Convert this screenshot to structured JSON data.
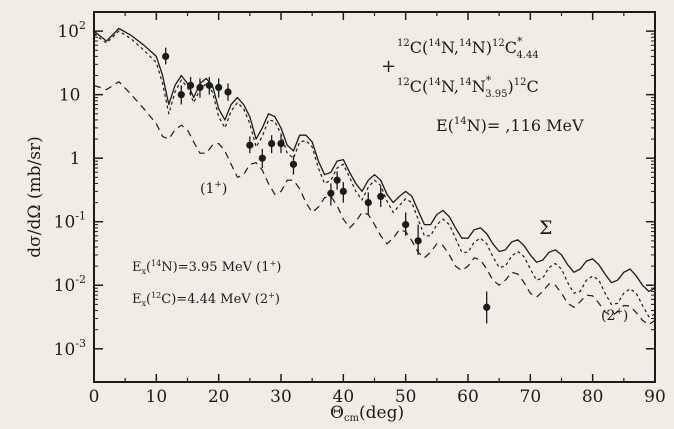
{
  "chart_data": {
    "type": "line",
    "title": "",
    "xlabel": "Θcm(deg)",
    "xlabel_main": "Θ",
    "xlabel_sub": "cm",
    "xlabel_unit": "(deg)",
    "ylabel": "dσ/dΩ (mb/sr)",
    "xlim": [
      0,
      90
    ],
    "ylim": [
      0.0003,
      200
    ],
    "yscale": "log",
    "xticks": [
      0,
      10,
      20,
      30,
      40,
      50,
      60,
      70,
      80,
      90
    ],
    "xtick_labels": [
      "0",
      "10",
      "20",
      "30",
      "40",
      "50",
      "60",
      "70",
      "80",
      "90"
    ],
    "ytick_exponents": [
      2,
      1,
      0,
      -1,
      -2,
      -3
    ],
    "ytick_labels": [
      {
        "base": "10",
        "sup": "2"
      },
      {
        "base": "10",
        "sup": ""
      },
      {
        "base": "1",
        "sup": ""
      },
      {
        "base": "10",
        "sup": "-1"
      },
      {
        "base": "10",
        "sup": "-2"
      },
      {
        "base": "10",
        "sup": "-3"
      }
    ],
    "grid": false,
    "series": [
      {
        "name": "Σ",
        "style": "solid",
        "x": [
          0,
          2,
          4,
          6,
          8,
          10,
          11,
          12,
          13,
          14,
          15,
          16,
          17,
          18,
          19,
          20,
          21,
          22,
          23,
          24,
          25,
          26,
          27,
          28,
          29,
          30,
          31,
          32,
          33,
          34,
          35,
          36,
          37,
          38,
          39,
          40,
          41,
          42,
          43,
          44,
          45,
          46,
          47,
          48,
          49,
          50,
          51,
          52,
          53,
          54,
          55,
          56,
          57,
          58,
          59,
          60,
          61,
          62,
          63,
          64,
          65,
          66,
          67,
          68,
          69,
          70,
          71,
          72,
          73,
          74,
          75,
          76,
          77,
          78,
          79,
          80,
          81,
          82,
          83,
          84,
          85,
          86,
          87,
          88,
          89,
          90
        ],
        "y": [
          100,
          70,
          110,
          85,
          60,
          40,
          20,
          7,
          14,
          20,
          15,
          9,
          15,
          18,
          14,
          6,
          4,
          7,
          9,
          7,
          4.5,
          2,
          3,
          5,
          4.5,
          3,
          1.6,
          1.3,
          2.3,
          2.3,
          1.8,
          0.9,
          0.55,
          0.6,
          0.9,
          0.95,
          0.6,
          0.4,
          0.3,
          0.45,
          0.55,
          0.45,
          0.27,
          0.2,
          0.25,
          0.3,
          0.25,
          0.15,
          0.09,
          0.09,
          0.13,
          0.15,
          0.12,
          0.08,
          0.055,
          0.055,
          0.075,
          0.08,
          0.065,
          0.045,
          0.034,
          0.036,
          0.048,
          0.052,
          0.042,
          0.03,
          0.023,
          0.025,
          0.033,
          0.036,
          0.03,
          0.021,
          0.016,
          0.018,
          0.024,
          0.026,
          0.021,
          0.015,
          0.011,
          0.012,
          0.016,
          0.018,
          0.014,
          0.01,
          0.008,
          0.009
        ]
      },
      {
        "name": "(1⁺)",
        "style": "dashed",
        "x": [
          0,
          2,
          4,
          6,
          8,
          10,
          11,
          12,
          13,
          14,
          15,
          16,
          17,
          18,
          19,
          20,
          21,
          22,
          23,
          24,
          25,
          26,
          27,
          28,
          29,
          30,
          31,
          32,
          33,
          34,
          35,
          36,
          37,
          38,
          39,
          40,
          41,
          42,
          43,
          44,
          45,
          46,
          47,
          48,
          49,
          50,
          51,
          52,
          53,
          54,
          55,
          56,
          57,
          58,
          59,
          60,
          61,
          62,
          63,
          64,
          65,
          66,
          67,
          68,
          69,
          70,
          71,
          72,
          73,
          74,
          75,
          76,
          77,
          78,
          79,
          80,
          81,
          82,
          83,
          84,
          85,
          86,
          87,
          88,
          89,
          90
        ],
        "y": [
          14,
          12,
          16,
          10,
          6,
          3.5,
          2.2,
          2,
          2.8,
          3.3,
          2.8,
          1.8,
          1.2,
          1.2,
          1.6,
          1.7,
          1.3,
          0.8,
          0.5,
          0.55,
          0.8,
          0.85,
          0.65,
          0.4,
          0.27,
          0.3,
          0.45,
          0.45,
          0.33,
          0.2,
          0.14,
          0.17,
          0.24,
          0.25,
          0.18,
          0.11,
          0.08,
          0.1,
          0.14,
          0.13,
          0.09,
          0.06,
          0.045,
          0.055,
          0.075,
          0.07,
          0.05,
          0.033,
          0.027,
          0.033,
          0.045,
          0.042,
          0.03,
          0.02,
          0.017,
          0.02,
          0.027,
          0.025,
          0.018,
          0.012,
          0.01,
          0.012,
          0.016,
          0.015,
          0.011,
          0.0075,
          0.0065,
          0.008,
          0.0105,
          0.01,
          0.0075,
          0.0052,
          0.0045,
          0.0055,
          0.007,
          0.0068,
          0.0052,
          0.0038,
          0.0033,
          0.0038,
          0.0048,
          0.0047,
          0.0037,
          0.0028,
          0.0024,
          0.0028
        ]
      },
      {
        "name": "(2⁺)",
        "style": "dotted",
        "x": [
          0,
          2,
          4,
          6,
          8,
          10,
          11,
          12,
          13,
          14,
          15,
          16,
          17,
          18,
          19,
          20,
          21,
          22,
          23,
          24,
          25,
          26,
          27,
          28,
          29,
          30,
          31,
          32,
          33,
          34,
          35,
          36,
          37,
          38,
          39,
          40,
          41,
          42,
          43,
          44,
          45,
          46,
          47,
          48,
          49,
          50,
          51,
          52,
          53,
          54,
          55,
          56,
          57,
          58,
          59,
          60,
          61,
          62,
          63,
          64,
          65,
          66,
          67,
          68,
          69,
          70,
          71,
          72,
          73,
          74,
          75,
          76,
          77,
          78,
          79,
          80,
          81,
          82,
          83,
          84,
          85,
          86,
          87,
          88,
          89,
          90
        ],
        "y": [
          90,
          65,
          100,
          75,
          50,
          32,
          15,
          5,
          11,
          17,
          13,
          7.5,
          12,
          15,
          11,
          4.5,
          3,
          5.5,
          7.5,
          6,
          3.5,
          1.5,
          2.2,
          4,
          3.8,
          2.4,
          1.2,
          1,
          1.8,
          1.9,
          1.5,
          0.7,
          0.4,
          0.45,
          0.7,
          0.8,
          0.5,
          0.3,
          0.22,
          0.35,
          0.45,
          0.37,
          0.21,
          0.14,
          0.18,
          0.23,
          0.2,
          0.11,
          0.06,
          0.06,
          0.09,
          0.11,
          0.09,
          0.055,
          0.033,
          0.033,
          0.048,
          0.055,
          0.045,
          0.028,
          0.019,
          0.02,
          0.029,
          0.034,
          0.028,
          0.018,
          0.012,
          0.013,
          0.019,
          0.022,
          0.018,
          0.011,
          0.0075,
          0.008,
          0.012,
          0.014,
          0.012,
          0.0075,
          0.005,
          0.0052,
          0.0075,
          0.0088,
          0.0075,
          0.0048,
          0.0032,
          0.0035
        ]
      }
    ],
    "measurements": {
      "name": "data",
      "x": [
        11.5,
        14,
        15.5,
        17,
        18.5,
        20,
        21.5,
        25,
        27,
        28.5,
        30,
        32,
        38,
        39,
        40,
        44,
        46,
        50,
        52,
        63
      ],
      "y": [
        40,
        10,
        14,
        13,
        14,
        13,
        11,
        1.6,
        1,
        1.7,
        1.7,
        0.8,
        0.28,
        0.45,
        0.3,
        0.2,
        0.25,
        0.09,
        0.05,
        0.0045
      ],
      "yerr_lo": [
        30,
        7,
        10,
        9,
        10,
        9,
        8,
        1.2,
        0.7,
        1.2,
        1.2,
        0.55,
        0.18,
        0.32,
        0.2,
        0.13,
        0.17,
        0.06,
        0.03,
        0.0025
      ],
      "yerr_hi": [
        55,
        14,
        19,
        18,
        19,
        18,
        15,
        2.2,
        1.4,
        2.3,
        2.3,
        1.1,
        0.4,
        0.62,
        0.42,
        0.29,
        0.36,
        0.14,
        0.09,
        0.008
      ]
    },
    "annotations": {
      "reaction1": {
        "p1": "12",
        "a": "C(",
        "p2": "14",
        "b": "N,",
        "p3": "14",
        "c": "N)",
        "p4": "12",
        "d": "C",
        "sup": "*",
        "sub": "4.44"
      },
      "reaction2": {
        "p1": "12",
        "a": "C(",
        "p2": "14",
        "b": "N,",
        "p3": "14",
        "c": "N",
        "sup": "*",
        "sub": "3.95",
        "d": ")",
        "p4": "12",
        "e": "C"
      },
      "energy": {
        "a": "E(",
        "p": "14",
        "b": "N)=  ,116  MeV"
      },
      "excitation1": {
        "a": "E",
        "sub": "x",
        "b": "(",
        "p": "14",
        "c": "N)=3.95  MeV  (1",
        "sup": "+",
        "d": ")"
      },
      "excitation2": {
        "a": "E",
        "sub": "x",
        "b": "(",
        "p": "12",
        "c": "C)=4.44  MeV  (2",
        "sup": "+",
        "d": ")"
      },
      "label_1plus": {
        "a": "(1",
        "sup": "+",
        "b": ")"
      },
      "label_2plus": {
        "a": "(2",
        "sup": "+",
        "b": ")"
      },
      "label_sigma": "Σ",
      "plus_marker": "+"
    }
  }
}
